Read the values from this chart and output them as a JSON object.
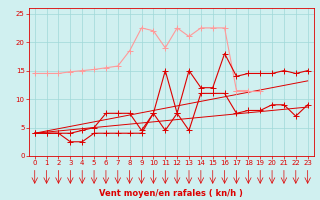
{
  "x": [
    0,
    1,
    2,
    3,
    4,
    5,
    6,
    7,
    8,
    9,
    10,
    11,
    12,
    13,
    14,
    15,
    16,
    17,
    18,
    19,
    20,
    21,
    22,
    23
  ],
  "line_light_upper": [
    14.5,
    14.5,
    14.5,
    14.8,
    15.0,
    15.2,
    15.5,
    15.8,
    18.5,
    22.5,
    22.0,
    19.0,
    22.5,
    21.0,
    22.5,
    22.5,
    22.5,
    11.5,
    11.5,
    null,
    null,
    null,
    null,
    null
  ],
  "line_dark_upper": [
    4.0,
    4.0,
    4.0,
    4.0,
    4.5,
    5.0,
    7.5,
    7.5,
    7.5,
    4.5,
    7.5,
    15.0,
    7.5,
    15.0,
    12.0,
    12.0,
    18.0,
    14.0,
    14.5,
    14.5,
    14.5,
    15.0,
    14.5,
    15.0
  ],
  "line_dark_lower": [
    4.0,
    4.0,
    4.0,
    2.5,
    2.5,
    4.0,
    4.0,
    4.0,
    4.0,
    4.0,
    7.5,
    4.5,
    7.5,
    4.5,
    11.0,
    11.0,
    11.0,
    7.5,
    8.0,
    8.0,
    9.0,
    9.0,
    7.0,
    9.0
  ],
  "line_trend1": [
    4.0,
    4.2,
    4.4,
    4.6,
    4.8,
    5.0,
    5.2,
    5.4,
    5.6,
    5.8,
    6.0,
    6.2,
    6.4,
    6.6,
    6.8,
    7.0,
    7.2,
    7.4,
    7.6,
    7.8,
    8.0,
    8.2,
    8.4,
    8.6
  ],
  "line_trend2": [
    4.0,
    4.4,
    4.8,
    5.2,
    5.6,
    6.0,
    6.4,
    6.8,
    7.2,
    7.6,
    8.0,
    8.4,
    8.8,
    9.2,
    9.6,
    10.0,
    10.4,
    10.8,
    11.2,
    11.6,
    12.0,
    12.4,
    12.8,
    13.2
  ],
  "bg_color": "#d0f0f0",
  "grid_color": "#a0d8d8",
  "light_red": "#ff9999",
  "dark_red": "#dd0000",
  "xlabel": "Vent moyen/en rafales ( kn/h )",
  "ylim": [
    0,
    26
  ],
  "xlim": [
    -0.5,
    23.5
  ],
  "yticks": [
    0,
    5,
    10,
    15,
    20,
    25
  ],
  "xticks": [
    0,
    1,
    2,
    3,
    4,
    5,
    6,
    7,
    8,
    9,
    10,
    11,
    12,
    13,
    14,
    15,
    16,
    17,
    18,
    19,
    20,
    21,
    22,
    23
  ],
  "xlabel_fontsize": 6,
  "tick_fontsize": 5
}
